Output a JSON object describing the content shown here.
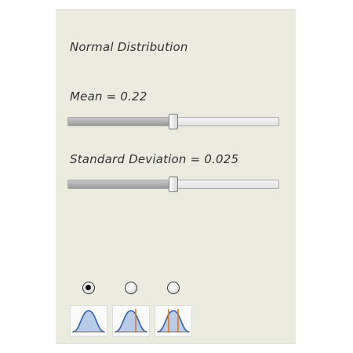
{
  "panel": {
    "title": "Normal Distribution"
  },
  "mean": {
    "label": "Mean = 0.22",
    "slider_fraction": 0.5
  },
  "standard_deviation": {
    "label": "Standard Deviation = 0.025",
    "slider_fraction": 0.5
  },
  "view_options": {
    "selected_index": 0,
    "options": [
      {
        "icon": "normal-curve-icon"
      },
      {
        "icon": "normal-curve-right-line-icon"
      },
      {
        "icon": "normal-curve-two-lines-icon"
      }
    ]
  },
  "colors": {
    "panel_background": "#ebebdf",
    "curve_stroke": "#2f5fa8",
    "curve_fill": "#b8cbe8",
    "marker_line": "#e07b1a"
  }
}
